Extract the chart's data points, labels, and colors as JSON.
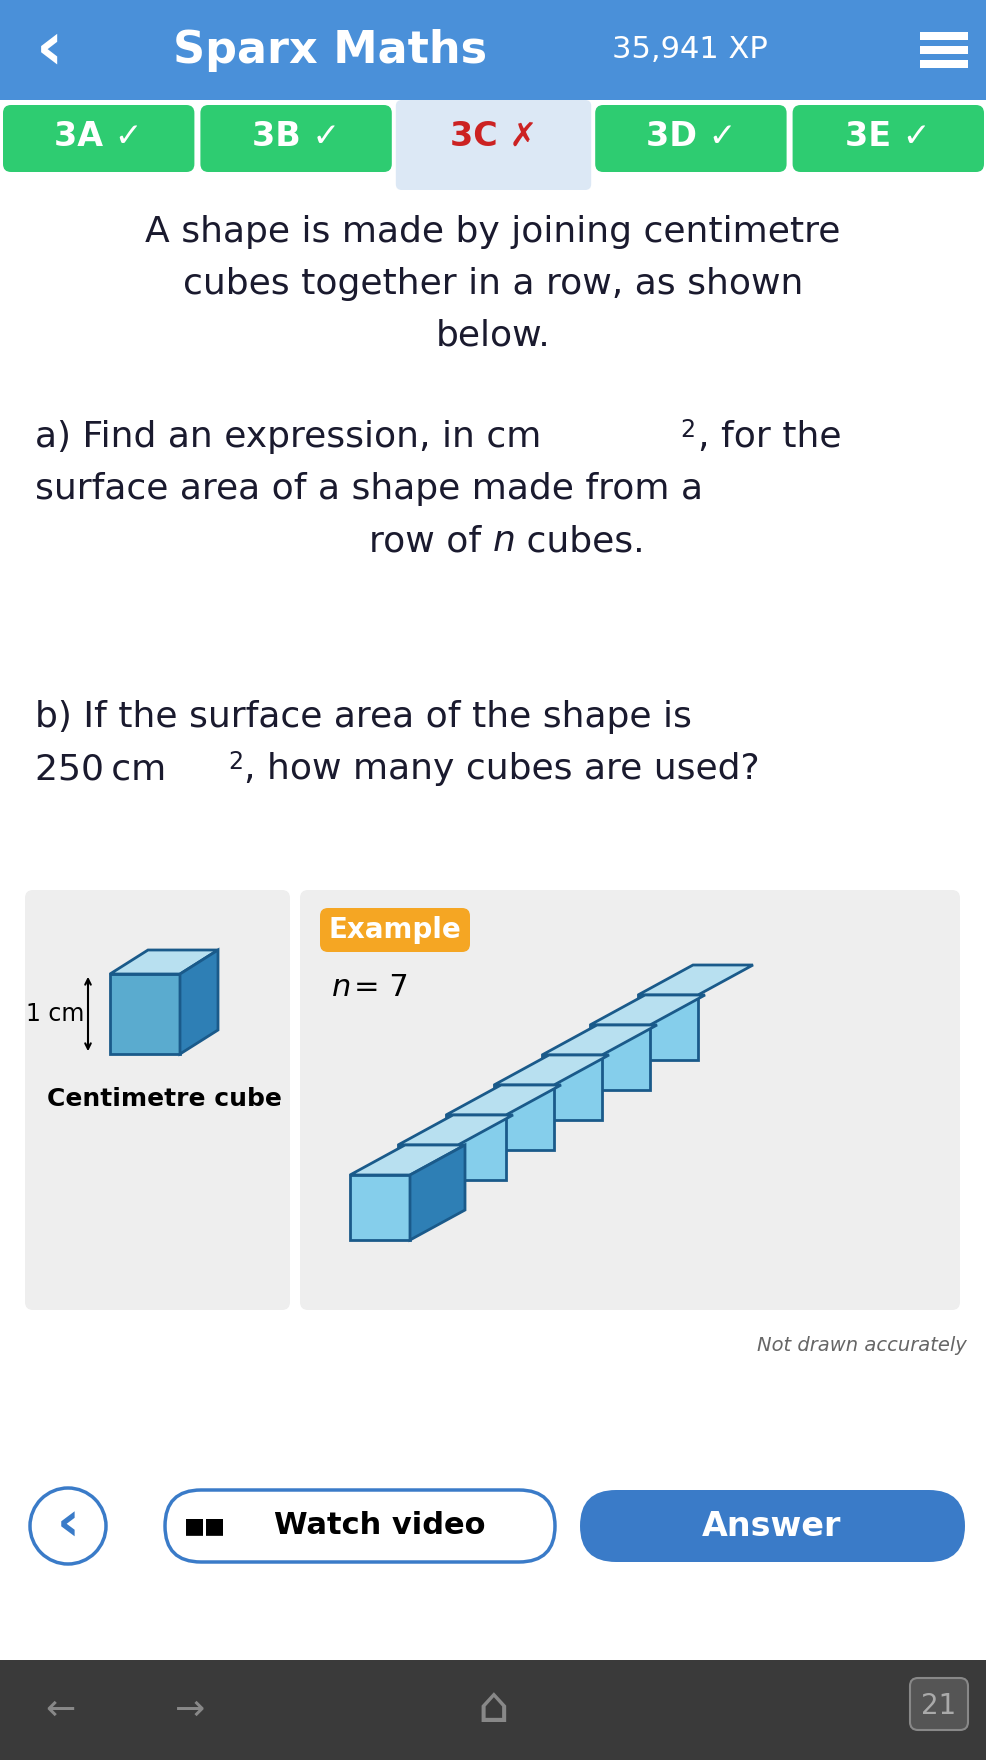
{
  "title": "Sparx Maths",
  "xp": "35,941 XP",
  "header_bg": "#4a90d9",
  "header_bg_dark": "#3578c0",
  "tabs": [
    "3A",
    "3B",
    "3C",
    "3D",
    "3E"
  ],
  "tab_checks": [
    "✓",
    "✓",
    "✗",
    "✓",
    "✓"
  ],
  "tab_active": 2,
  "tab_green": "#2ecc71",
  "tab_active_bg": "#dce8f5",
  "tab_active_color": "#cc2222",
  "question_text_lines": [
    "A shape is made by joining centimetre",
    "cubes together in a row, as shown",
    "below."
  ],
  "example_label": "Example",
  "example_n": "n=7",
  "centimetre_cube": "Centimetre cube",
  "not_drawn": "Not drawn accurately",
  "watch_video": "Watch video",
  "answer_btn": "Answer",
  "footer_bg": "#3a3a3a",
  "btn_blue": "#3a7bc8",
  "example_orange": "#f5a623",
  "img_bg": "#eeeeee",
  "cube_light": "#85ceeb",
  "cube_dark": "#1a5a8a",
  "cube_top": "#b8e0f0",
  "cube_front": "#5aabcf",
  "cube_side": "#2e7fb5"
}
